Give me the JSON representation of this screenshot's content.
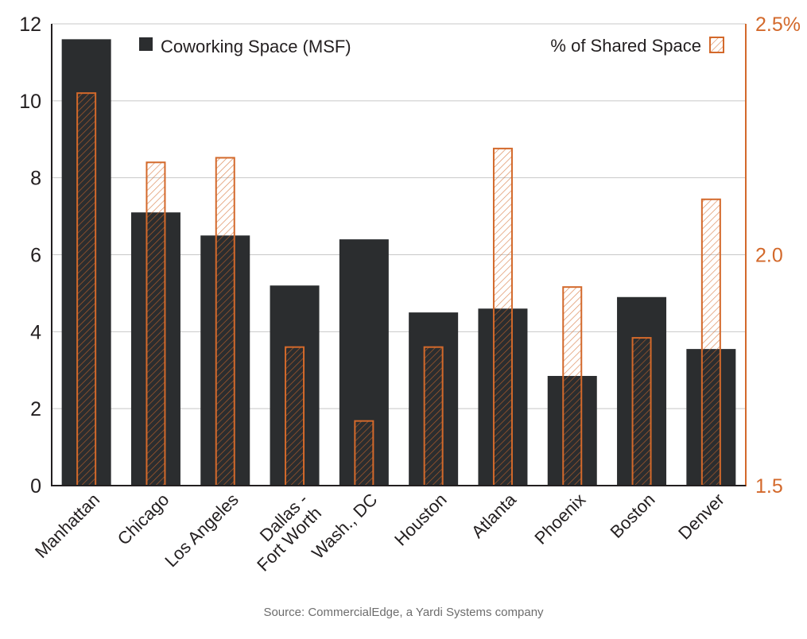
{
  "chart_data": {
    "type": "bar",
    "categories": [
      "Manhattan",
      "Chicago",
      "Los Angeles",
      "Dallas -\nFort Worth",
      "Wash., DC",
      "Houston",
      "Atlanta",
      "Phoenix",
      "Boston",
      "Denver"
    ],
    "series": [
      {
        "name": "Coworking Space (MSF)",
        "axis": "left",
        "color": "#2b2d2f",
        "values": [
          11.6,
          7.1,
          6.5,
          5.2,
          6.4,
          4.5,
          4.6,
          2.85,
          4.9,
          3.55
        ]
      },
      {
        "name": "% of Shared Space",
        "axis": "right",
        "color": "#d3692b",
        "values": [
          2.35,
          2.2,
          2.21,
          1.8,
          1.64,
          1.8,
          2.23,
          1.93,
          1.82,
          2.12
        ]
      }
    ],
    "y_left": {
      "min": 0,
      "max": 12,
      "ticks": [
        "0",
        "2",
        "4",
        "6",
        "8",
        "10",
        "12"
      ]
    },
    "y_right": {
      "min": 1.5,
      "max": 2.5,
      "ticks": [
        "1.5",
        "2.0",
        "2.5%"
      ]
    },
    "legend": {
      "left_label": "Coworking Space (MSF)",
      "right_label": "% of Shared Space"
    },
    "grid": true,
    "source": "Source: CommercialEdge, a Yardi Systems company"
  }
}
